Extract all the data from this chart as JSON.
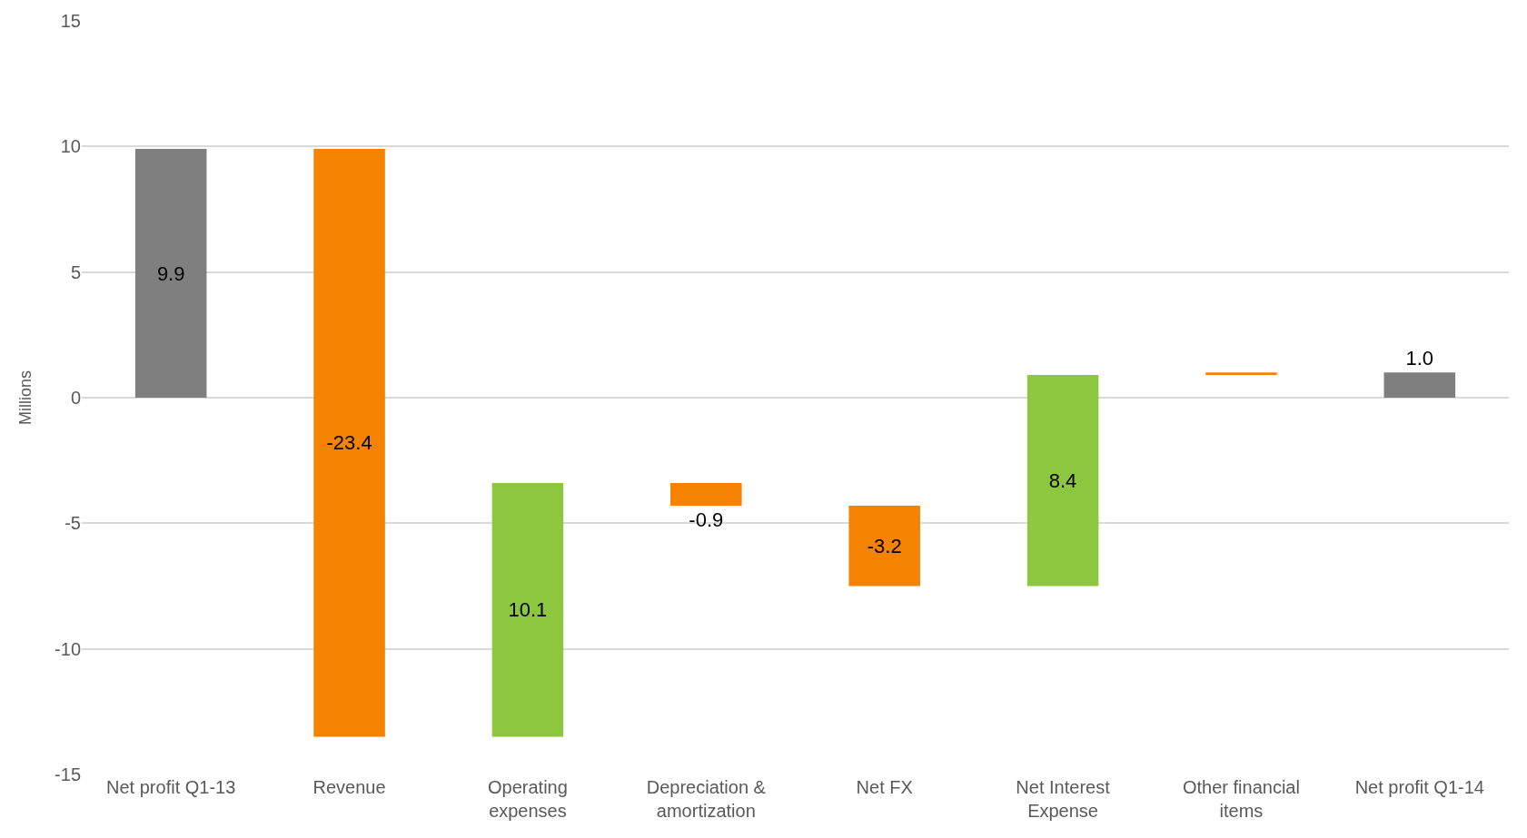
{
  "chart_data": {
    "type": "bar",
    "ylabel": "Millions",
    "categories": [
      "Net profit Q1-13",
      "Revenue",
      "Operating expenses",
      "Depreciation & amortization",
      "Net FX",
      "Net Interest Expense",
      "Other financial items",
      "Net profit Q1-14"
    ],
    "values": [
      9.9,
      -23.4,
      10.1,
      -0.9,
      -3.2,
      8.4,
      0.1,
      1.0
    ],
    "base": [
      0,
      9.9,
      -13.5,
      -3.4,
      -4.3,
      -7.5,
      0.9,
      0
    ],
    "value_labels": [
      "9.9",
      "-23.4",
      "10.1",
      "-0.9",
      "-3.2",
      "8.4",
      null,
      "1.0"
    ],
    "colors": [
      "#7f7f7f",
      "#f58200",
      "#8dc63f",
      "#f58200",
      "#f58200",
      "#8dc63f",
      "#f58200",
      "#7f7f7f"
    ],
    "ylim": [
      -15,
      15
    ],
    "yticks": [
      -15,
      -10,
      -5,
      0,
      5,
      10,
      15
    ],
    "grid": "y"
  }
}
